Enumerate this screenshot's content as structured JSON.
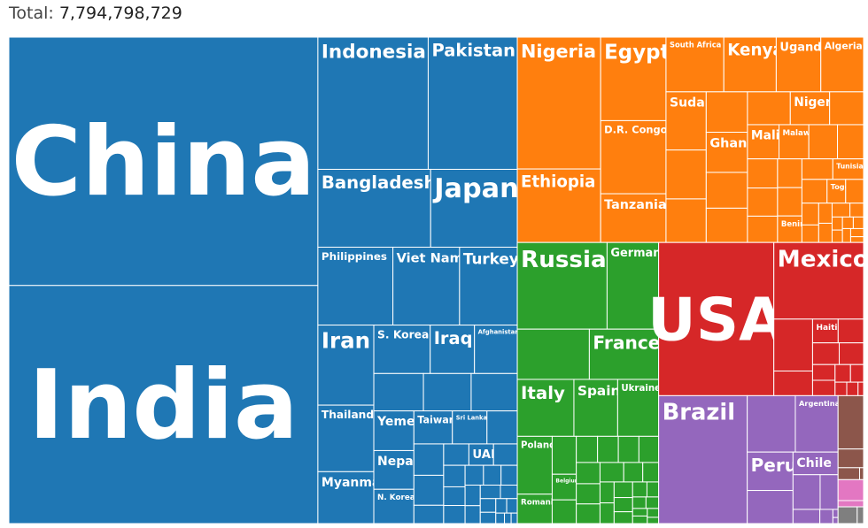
{
  "chart_data": {
    "type": "treemap",
    "total_text": "Total:",
    "total": "7,794,798,729",
    "groups": [
      {
        "color": "#1f77b4",
        "countries": [
          {
            "name": "China",
            "value": 1439323776
          },
          {
            "name": "India",
            "value": 1380004385
          },
          {
            "name": "Indonesia",
            "value": 273523615
          },
          {
            "name": "Pakistan",
            "value": 220892340
          },
          {
            "name": "Bangladesh",
            "value": 164689383
          },
          {
            "name": "Japan",
            "value": 126476461
          },
          {
            "name": "Philippines",
            "value": 109581078
          },
          {
            "name": "Viet Nam",
            "value": 97338579
          },
          {
            "name": "Turkey",
            "value": 84339067
          },
          {
            "name": "Iran",
            "value": 83992949
          },
          {
            "name": "Thailand",
            "value": 69799978
          },
          {
            "name": "Myanmar",
            "value": 54409800
          },
          {
            "name": "S. Korea",
            "value": 51269185
          },
          {
            "name": "Iraq",
            "value": 40222493
          },
          {
            "name": "Afghanistan",
            "value": 38928346
          },
          {
            "name": null,
            "value": 34813871
          },
          {
            "name": null,
            "value": 33469203
          },
          {
            "name": null,
            "value": 32365999
          },
          {
            "name": "Yemen",
            "value": 29825964
          },
          {
            "name": "Nepal",
            "value": 29136808
          },
          {
            "name": "N. Korea",
            "value": 25778816
          },
          {
            "name": "Taiwan",
            "value": 23816775
          },
          {
            "name": "Sri Lanka",
            "value": 21413249
          },
          {
            "name": null,
            "value": 18776707
          },
          {
            "name": null,
            "value": 17500658
          },
          {
            "name": null,
            "value": 16718965
          },
          {
            "name": null,
            "value": 10203134
          },
          {
            "name": null,
            "value": 10139177
          },
          {
            "name": "UAE",
            "value": 9890402
          },
          {
            "name": null,
            "value": 9537645
          },
          {
            "name": null,
            "value": 8655535
          },
          {
            "name": null,
            "value": 7496981
          },
          {
            "name": null,
            "value": 7275560
          },
          {
            "name": null,
            "value": 6825445
          },
          {
            "name": null,
            "value": 6524195
          },
          {
            "name": null,
            "value": 6031200
          },
          {
            "name": null,
            "value": 5850342
          },
          {
            "name": null,
            "value": 5106626
          },
          {
            "name": null,
            "value": 5101414
          },
          {
            "name": null,
            "value": 4270571
          },
          {
            "name": null,
            "value": 3989167
          },
          {
            "name": null,
            "value": 3278290
          },
          {
            "name": null,
            "value": 2963243
          },
          {
            "name": null,
            "value": 2881053
          },
          {
            "name": null,
            "value": 1701575
          },
          {
            "name": null,
            "value": 1318445
          },
          {
            "name": null,
            "value": 1207359
          }
        ]
      },
      {
        "color": "#ff7f0e",
        "countries": [
          {
            "name": "Nigeria",
            "value": 206139589
          },
          {
            "name": "Ethiopia",
            "value": 114963588
          },
          {
            "name": "Egypt",
            "value": 102334404
          },
          {
            "name": "D.R. Congo",
            "value": 89561403
          },
          {
            "name": "Tanzania",
            "value": 59734218
          },
          {
            "name": "South Africa",
            "value": 59308690
          },
          {
            "name": "Kenya",
            "value": 53771296
          },
          {
            "name": "Uganda",
            "value": 45741007
          },
          {
            "name": "Algeria",
            "value": 43851044
          },
          {
            "name": "Sudan",
            "value": 43849260
          },
          {
            "name": null,
            "value": 36910560
          },
          {
            "name": null,
            "value": 32866272
          },
          {
            "name": null,
            "value": 31255435
          },
          {
            "name": "Ghana",
            "value": 31072940
          },
          {
            "name": null,
            "value": 27691018
          },
          {
            "name": null,
            "value": 26545863
          },
          {
            "name": null,
            "value": 26378274
          },
          {
            "name": "Niger",
            "value": 24206644
          },
          {
            "name": null,
            "value": 20903273
          },
          {
            "name": "Mali",
            "value": 20250833
          },
          {
            "name": "Malawi",
            "value": 19129952
          },
          {
            "name": null,
            "value": 18383955
          },
          {
            "name": null,
            "value": 16743927
          },
          {
            "name": null,
            "value": 16425864
          },
          {
            "name": null,
            "value": 15893222
          },
          {
            "name": null,
            "value": 14862924
          },
          {
            "name": null,
            "value": 13132795
          },
          {
            "name": null,
            "value": 12952218
          },
          {
            "name": "Benin",
            "value": 12123200
          },
          {
            "name": null,
            "value": 11890784
          },
          {
            "name": "Tunisia",
            "value": 11818619
          },
          {
            "name": null,
            "value": 11193725
          },
          {
            "name": "Togo",
            "value": 8278724
          },
          {
            "name": null,
            "value": 7976983
          },
          {
            "name": null,
            "value": 6871292
          },
          {
            "name": null,
            "value": 5518087
          },
          {
            "name": null,
            "value": 5057681
          },
          {
            "name": null,
            "value": 4829767
          },
          {
            "name": null,
            "value": 4649658
          },
          {
            "name": null,
            "value": 3546421
          },
          {
            "name": null,
            "value": 2540905
          },
          {
            "name": null,
            "value": 2416668
          },
          {
            "name": null,
            "value": 2351627
          },
          {
            "name": null,
            "value": 2225734
          },
          {
            "name": null,
            "value": 2142249
          },
          {
            "name": null,
            "value": 1968001
          },
          {
            "name": null,
            "value": 1402985
          }
        ]
      },
      {
        "color": "#2ca02c",
        "countries": [
          {
            "name": "Russia",
            "value": 145934462
          },
          {
            "name": "Germany",
            "value": 83783942
          },
          {
            "name": null,
            "value": 67886011
          },
          {
            "name": "France",
            "value": 65273511
          },
          {
            "name": "Italy",
            "value": 60461826
          },
          {
            "name": "Spain",
            "value": 46754778
          },
          {
            "name": "Ukraine",
            "value": 43733762
          },
          {
            "name": "Poland",
            "value": 37846611
          },
          {
            "name": "Romania",
            "value": 19237691
          },
          {
            "name": null,
            "value": 17134872
          },
          {
            "name": "Belgium",
            "value": 11589623
          },
          {
            "name": null,
            "value": 10708981
          },
          {
            "name": null,
            "value": 10423054
          },
          {
            "name": null,
            "value": 10196709
          },
          {
            "name": null,
            "value": 10099265
          },
          {
            "name": null,
            "value": 9660351
          },
          {
            "name": null,
            "value": 9449323
          },
          {
            "name": null,
            "value": 9006398
          },
          {
            "name": null,
            "value": 8737371
          },
          {
            "name": null,
            "value": 8654622
          },
          {
            "name": null,
            "value": 6948445
          },
          {
            "name": null,
            "value": 5792202
          },
          {
            "name": null,
            "value": 5540720
          },
          {
            "name": null,
            "value": 5459642
          },
          {
            "name": null,
            "value": 5421241
          },
          {
            "name": null,
            "value": 4937786
          },
          {
            "name": null,
            "value": 4105267
          },
          {
            "name": null,
            "value": 4033963
          },
          {
            "name": null,
            "value": 3280819
          },
          {
            "name": null,
            "value": 2877797
          },
          {
            "name": null,
            "value": 2722289
          },
          {
            "name": null,
            "value": 2083374
          },
          {
            "name": null,
            "value": 2078938
          },
          {
            "name": null,
            "value": 1886198
          },
          {
            "name": null,
            "value": 1326535
          }
        ]
      },
      {
        "color": "#d62728",
        "countries": [
          {
            "name": "USA",
            "value": 331002651
          },
          {
            "name": "Mexico",
            "value": 128932753
          },
          {
            "name": null,
            "value": 37742154
          },
          {
            "name": null,
            "value": 17915568
          },
          {
            "name": "Haiti",
            "value": 11402528
          },
          {
            "name": null,
            "value": 11326616
          },
          {
            "name": null,
            "value": 10847910
          },
          {
            "name": null,
            "value": 9904607
          },
          {
            "name": null,
            "value": 6624554
          },
          {
            "name": null,
            "value": 6486205
          },
          {
            "name": null,
            "value": 5094118
          },
          {
            "name": null,
            "value": 4314767
          },
          {
            "name": null,
            "value": 2961167
          },
          {
            "name": null,
            "value": 2860853
          },
          {
            "name": null,
            "value": 1399488
          }
        ]
      },
      {
        "color": "#9467bd",
        "countries": [
          {
            "name": "Brazil",
            "value": 212559417
          },
          {
            "name": null,
            "value": 50882891
          },
          {
            "name": "Argentina",
            "value": 45195774
          },
          {
            "name": "Peru",
            "value": 32971854
          },
          {
            "name": null,
            "value": 28435940
          },
          {
            "name": "Chile",
            "value": 19116201
          },
          {
            "name": null,
            "value": 17643054
          },
          {
            "name": null,
            "value": 11673021
          },
          {
            "name": null,
            "value": 7132538
          },
          {
            "name": null,
            "value": 3473730
          },
          {
            "name": null,
            "value": 786552
          },
          {
            "name": null,
            "value": 586632
          }
        ]
      },
      {
        "color": "#8c564b",
        "countries": [
          {
            "name": null,
            "value": 25499884
          },
          {
            "name": null,
            "value": 8947024
          },
          {
            "name": null,
            "value": 4822233
          },
          {
            "name": null,
            "value": 896445
          }
        ]
      },
      {
        "color": "#e377c2",
        "countries": [
          {
            "name": null,
            "value": 10000000
          },
          {
            "name": null,
            "value": 3000000
          }
        ]
      },
      {
        "color": "#7f7f7f",
        "countries": [
          {
            "name": null,
            "value": 6000000
          },
          {
            "name": null,
            "value": 2000000
          }
        ]
      }
    ]
  }
}
